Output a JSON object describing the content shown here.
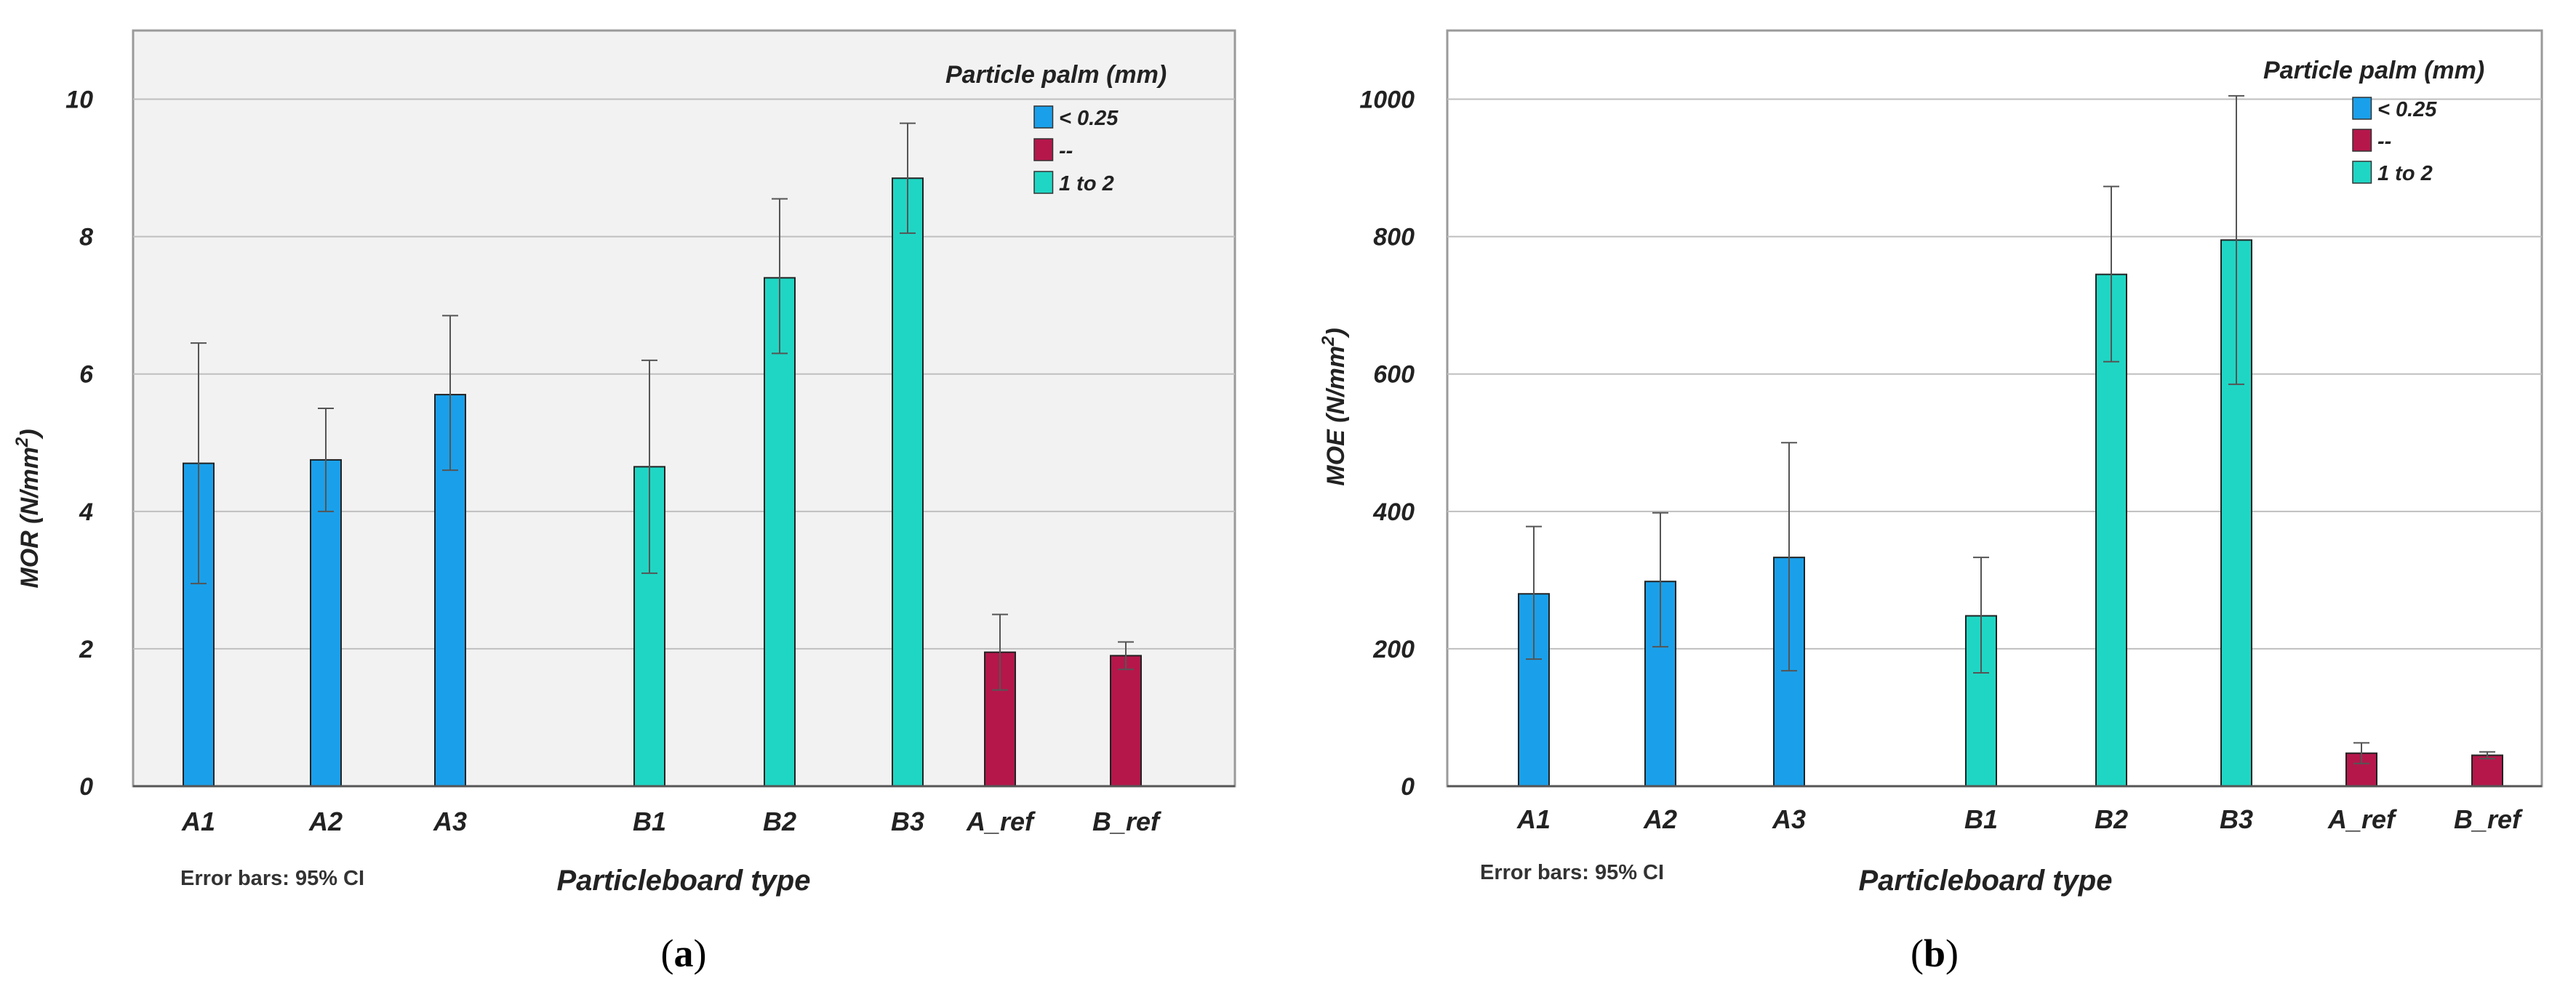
{
  "colors": {
    "lt_025": "#1aa0ea",
    "mid": "#b5174b",
    "range_1_2": "#1fd6c4",
    "plot_bg": "#f2f2f2",
    "grid": "#bfbfbf",
    "error_bar": "#555555"
  },
  "chart_data": [
    {
      "id": "a",
      "type": "bar",
      "panel_label": "a",
      "xlabel": "Particleboard  type",
      "ylabel": "MOR (N/mm",
      "ylabel_sup": "2",
      "ylabel_end": ")",
      "ylim": [
        0,
        11
      ],
      "yticks": [
        "0",
        "2",
        "4",
        "6",
        "8",
        "10"
      ],
      "grid": true,
      "legend_title": "Particle palm (mm)",
      "legend_position": "top-right",
      "legend": [
        {
          "label": "< 0.25",
          "color_key": "lt_025"
        },
        {
          "label": "--",
          "color_key": "mid"
        },
        {
          "label": "1 to 2",
          "color_key": "range_1_2"
        }
      ],
      "note": "Error bars:  95% CI",
      "categories": [
        "A1",
        "A2",
        "A3",
        "B1",
        "B2",
        "B3",
        "A_ref",
        "B_ref"
      ],
      "values": [
        4.7,
        4.75,
        5.7,
        4.65,
        7.4,
        8.85,
        1.95,
        1.9
      ],
      "error_low": [
        2.95,
        4.0,
        4.6,
        3.1,
        6.3,
        8.05,
        1.4,
        1.7
      ],
      "error_high": [
        6.45,
        5.5,
        6.85,
        6.2,
        8.55,
        9.65,
        2.5,
        2.1
      ],
      "series_of_bar": [
        "lt_025",
        "lt_025",
        "lt_025",
        "range_1_2",
        "range_1_2",
        "range_1_2",
        "mid",
        "mid"
      ]
    },
    {
      "id": "b",
      "type": "bar",
      "panel_label": "b",
      "xlabel": "Particleboard  type",
      "ylabel": "MOE (N/mm",
      "ylabel_sup": "2",
      "ylabel_end": ")",
      "ylim": [
        0,
        1100
      ],
      "yticks": [
        "0",
        "200",
        "400",
        "600",
        "800",
        "1000"
      ],
      "grid": true,
      "legend_title": "Particle palm (mm)",
      "legend_position": "top-right",
      "legend": [
        {
          "label": "< 0.25",
          "color_key": "lt_025"
        },
        {
          "label": "--",
          "color_key": "mid"
        },
        {
          "label": "1 to 2",
          "color_key": "range_1_2"
        }
      ],
      "note": "Error bars:  95% CI",
      "categories": [
        "A1",
        "A2",
        "A3",
        "B1",
        "B2",
        "B3",
        "A_ref",
        "B_ref"
      ],
      "values": [
        280,
        298,
        333,
        248,
        745,
        795,
        48,
        45
      ],
      "error_low": [
        185,
        203,
        168,
        165,
        618,
        585,
        33,
        40
      ],
      "error_high": [
        378,
        398,
        500,
        333,
        873,
        1005,
        63,
        50
      ],
      "series_of_bar": [
        "lt_025",
        "lt_025",
        "lt_025",
        "range_1_2",
        "range_1_2",
        "range_1_2",
        "mid",
        "mid"
      ]
    }
  ]
}
